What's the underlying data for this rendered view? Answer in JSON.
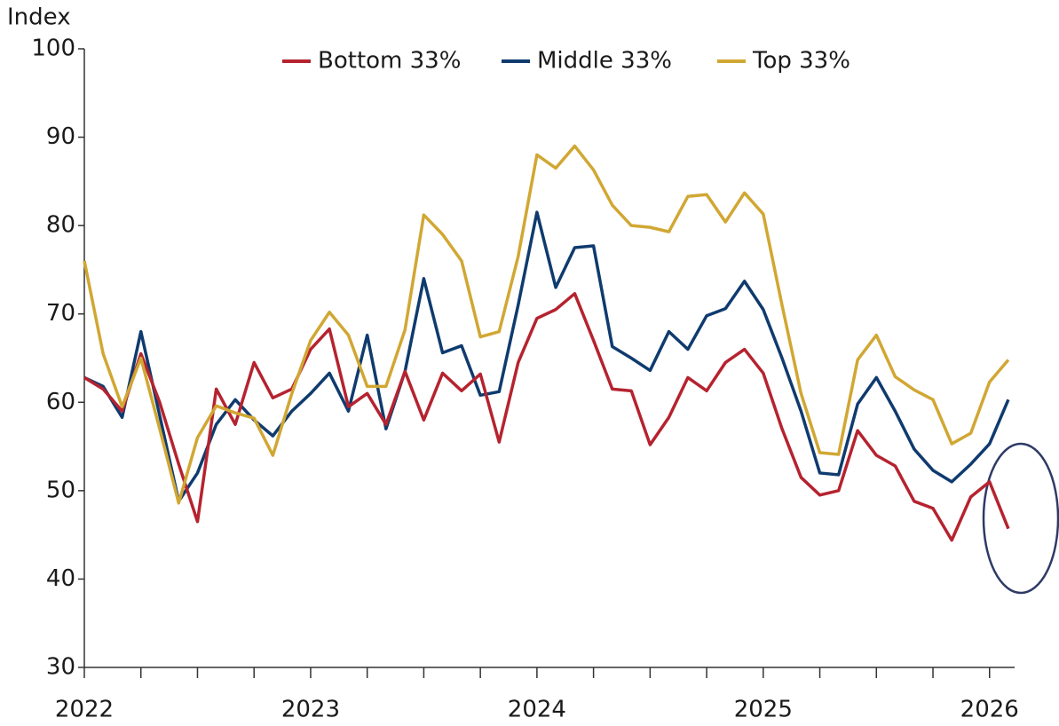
{
  "chart_data": {
    "type": "line",
    "y_label": "Index",
    "x": [
      2022,
      2022.083,
      2022.167,
      2022.25,
      2022.333,
      2022.417,
      2022.5,
      2022.583,
      2022.667,
      2022.75,
      2022.833,
      2022.917,
      2023,
      2023.083,
      2023.167,
      2023.25,
      2023.333,
      2023.417,
      2023.5,
      2023.583,
      2023.667,
      2023.75,
      2023.833,
      2023.917,
      2024,
      2024.083,
      2024.167,
      2024.25,
      2024.333,
      2024.417,
      2024.5,
      2024.583,
      2024.667,
      2024.75,
      2024.833,
      2024.917,
      2025,
      2025.083,
      2025.167,
      2025.25,
      2025.333,
      2025.417,
      2025.5,
      2025.583,
      2025.667,
      2025.75,
      2025.833,
      2025.917,
      2026,
      2026.083
    ],
    "series": [
      {
        "name": "Bottom 33%",
        "color": "#b5232f",
        "values": [
          62.8,
          61.5,
          59,
          65.5,
          60,
          53,
          46.5,
          61.5,
          57.5,
          64.5,
          60.5,
          61.5,
          66,
          68.3,
          59.5,
          61,
          57.5,
          63.5,
          58,
          63.3,
          61.3,
          63.2,
          55.5,
          64.5,
          69.5,
          70.5,
          72.3,
          67,
          61.5,
          61.3,
          55.2,
          58.3,
          62.8,
          61.3,
          64.5,
          66,
          63.3,
          57,
          51.5,
          49.5,
          50,
          56.8,
          54,
          52.8,
          48.8,
          48,
          44.4,
          49.3,
          51,
          45.7
        ]
      },
      {
        "name": "Middle 33%",
        "color": "#0f3b6e",
        "values": [
          62.8,
          61.8,
          58.3,
          68,
          58.5,
          48.8,
          52,
          57.5,
          60.3,
          58,
          56.2,
          59,
          61,
          63.3,
          59,
          67.6,
          57,
          63.5,
          74,
          65.6,
          66.4,
          60.8,
          61.2,
          71,
          81.5,
          73,
          77.5,
          77.7,
          66.3,
          65,
          63.6,
          68,
          66,
          69.8,
          70.6,
          73.7,
          70.5,
          65,
          59,
          52,
          51.8,
          59.8,
          62.8,
          59,
          54.7,
          52.3,
          51,
          53,
          55.3,
          60.3
        ]
      },
      {
        "name": "Top 33%",
        "color": "#d1a733",
        "values": [
          76,
          65.5,
          59.5,
          65,
          57,
          48.6,
          56,
          59.6,
          58.8,
          58.2,
          54,
          61,
          67,
          70.2,
          67.6,
          61.8,
          61.8,
          68.2,
          81.2,
          79,
          76,
          67.4,
          68,
          76.5,
          88,
          86.5,
          89,
          86.3,
          82.3,
          80,
          79.8,
          79.3,
          83.3,
          83.5,
          80.4,
          83.7,
          81.3,
          71,
          61,
          54.3,
          54.1,
          64.8,
          67.6,
          62.9,
          61.4,
          60.3,
          55.3,
          56.5,
          62.3,
          64.8
        ]
      }
    ],
    "xlim": [
      2022,
      2026.15
    ],
    "xticks": [
      2022,
      2023,
      2024,
      2025,
      2026
    ],
    "xminorticks": [
      2022.25,
      2022.5,
      2022.75,
      2023.25,
      2023.5,
      2023.75,
      2024.25,
      2024.5,
      2024.75,
      2025.25,
      2025.5,
      2025.75
    ],
    "ylim": [
      30,
      100
    ],
    "yticks": [
      30,
      40,
      50,
      60,
      70,
      80,
      90,
      100
    ],
    "grid": false,
    "legend": "top"
  }
}
